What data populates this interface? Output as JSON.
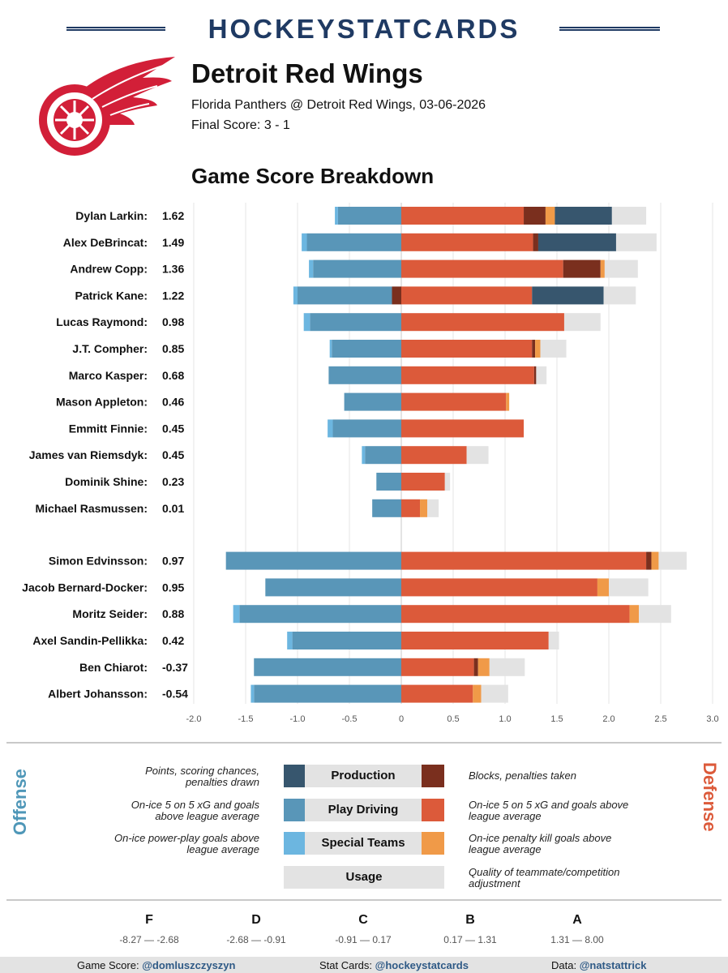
{
  "brand": "HOCKEYSTATCARDS",
  "team": "Detroit Red Wings",
  "matchup": "Florida Panthers @ Detroit Red Wings, 03-06-2026",
  "final_score": "Final Score: 3 - 1",
  "section_title": "Game Score Breakdown",
  "colors": {
    "production_off": "#37566e",
    "play_driving_off": "#5996b8",
    "special_teams_off": "#6cb6e0",
    "production_def": "#7a2f1e",
    "play_driving_def": "#dc5a3a",
    "special_teams_def": "#f09a48",
    "usage": "#e3e3e3",
    "brand": "#1f3a63",
    "logo_red": "#d21f38"
  },
  "chart_data": {
    "type": "bar",
    "orientation": "horizontal",
    "stacked": true,
    "xlim": [
      -2.0,
      3.0
    ],
    "xticks": [
      "-2.0",
      "-1.5",
      "-1.0",
      "-0.5",
      "0",
      "0.5",
      "1.0",
      "1.5",
      "2.0",
      "2.5",
      "3.0"
    ],
    "grid": true,
    "groups": [
      {
        "players": [
          {
            "name": "Dylan Larkin:",
            "score": "1.62",
            "off_special": -0.03,
            "off_play": -0.61,
            "off_prod": 0,
            "def_play": 1.18,
            "def_prod": 0.21,
            "def_special": 0.09,
            "def_prod2": 0.55,
            "usage": 0.33
          },
          {
            "name": "Alex DeBrincat:",
            "score": "1.49",
            "off_special": -0.05,
            "off_play": -0.91,
            "off_prod": 0,
            "def_play": 1.27,
            "def_prod": 0.05,
            "def_special": 0,
            "def_prod2": 0.75,
            "usage": 0.39
          },
          {
            "name": "Andrew Copp:",
            "score": "1.36",
            "off_special": -0.04,
            "off_play": -0.85,
            "off_prod": 0,
            "def_play": 1.56,
            "def_prod": 0.36,
            "def_special": 0.04,
            "def_prod2": 0,
            "usage": 0.32
          },
          {
            "name": "Patrick Kane:",
            "score": "1.22",
            "off_special": -0.04,
            "off_play": -0.91,
            "off_prod": -0.09,
            "def_play": 1.26,
            "def_prod": 0,
            "def_special": 0,
            "def_prod2": 0.69,
            "usage": 0.31
          },
          {
            "name": "Lucas Raymond:",
            "score": "0.98",
            "off_special": -0.06,
            "off_play": -0.88,
            "off_prod": 0,
            "def_play": 1.57,
            "def_prod": 0,
            "def_special": 0,
            "def_prod2": 0,
            "usage": 0.35
          },
          {
            "name": "J.T. Compher:",
            "score": "0.85",
            "off_special": -0.02,
            "off_play": -0.67,
            "off_prod": 0,
            "def_play": 1.26,
            "def_prod": 0.03,
            "def_special": 0.05,
            "def_prod2": 0,
            "usage": 0.25
          },
          {
            "name": "Marco Kasper:",
            "score": "0.68",
            "off_special": 0,
            "off_play": -0.7,
            "off_prod": 0,
            "def_play": 1.28,
            "def_prod": 0.02,
            "def_special": 0,
            "def_prod2": 0,
            "usage": 0.1
          },
          {
            "name": "Mason Appleton:",
            "score": "0.46",
            "off_special": 0,
            "off_play": -0.55,
            "off_prod": 0,
            "def_play": 1.01,
            "def_prod": 0,
            "def_special": 0.03,
            "def_prod2": 0,
            "usage": 0
          },
          {
            "name": "Emmitt Finnie:",
            "score": "0.45",
            "off_special": -0.05,
            "off_play": -0.66,
            "off_prod": 0,
            "def_play": 1.18,
            "def_prod": 0,
            "def_special": 0,
            "def_prod2": 0,
            "usage": 0
          },
          {
            "name": "James van Riemsdyk:",
            "score": "0.45",
            "off_special": -0.03,
            "off_play": -0.35,
            "off_prod": 0,
            "def_play": 0.63,
            "def_prod": 0,
            "def_special": 0,
            "def_prod2": 0,
            "usage": 0.21
          },
          {
            "name": "Dominik Shine:",
            "score": "0.23",
            "off_special": 0,
            "off_play": -0.24,
            "off_prod": 0,
            "def_play": 0.42,
            "def_prod": 0,
            "def_special": 0,
            "def_prod2": 0,
            "usage": 0.05
          },
          {
            "name": "Michael Rasmussen:",
            "score": "0.01",
            "off_special": 0,
            "off_play": -0.28,
            "off_prod": 0,
            "def_play": 0.18,
            "def_prod": 0,
            "def_special": 0.07,
            "def_prod2": 0,
            "usage": 0.11
          }
        ]
      },
      {
        "players": [
          {
            "name": "Simon Edvinsson:",
            "score": "0.97",
            "off_special": 0,
            "off_play": -1.69,
            "off_prod": 0,
            "def_play": 2.36,
            "def_prod": 0.05,
            "def_special": 0.07,
            "def_prod2": 0,
            "usage": 0.27
          },
          {
            "name": "Jacob Bernard-Docker:",
            "score": "0.95",
            "off_special": 0,
            "off_play": -1.31,
            "off_prod": 0,
            "def_play": 1.89,
            "def_prod": 0,
            "def_special": 0.11,
            "def_prod2": 0,
            "usage": 0.38
          },
          {
            "name": "Moritz Seider:",
            "score": "0.88",
            "off_special": -0.06,
            "off_play": -1.56,
            "off_prod": 0,
            "def_play": 2.2,
            "def_prod": 0,
            "def_special": 0.09,
            "def_prod2": 0,
            "usage": 0.31
          },
          {
            "name": "Axel Sandin-Pellikka:",
            "score": "0.42",
            "off_special": -0.05,
            "off_play": -1.05,
            "off_prod": 0,
            "def_play": 1.42,
            "def_prod": 0,
            "def_special": 0,
            "def_prod2": 0,
            "usage": 0.1
          },
          {
            "name": "Ben Chiarot:",
            "score": "-0.37",
            "off_special": 0,
            "off_play": -1.42,
            "off_prod": 0,
            "def_play": 0.7,
            "def_prod": 0.04,
            "def_special": 0.11,
            "def_prod2": 0,
            "usage": 0.34
          },
          {
            "name": "Albert Johansson:",
            "score": "-0.54",
            "off_special": -0.03,
            "off_play": -1.42,
            "off_prod": 0,
            "def_play": 0.69,
            "def_prod": 0,
            "def_special": 0.08,
            "def_prod2": 0,
            "usage": 0.26
          }
        ]
      }
    ]
  },
  "legend": {
    "offense_label": "Offense",
    "defense_label": "Defense",
    "rows": [
      {
        "label": "Production",
        "left_text": "Points, scoring chances, penalties drawn",
        "right_text": "Blocks, penalties taken"
      },
      {
        "label": "Play Driving",
        "left_text": "On-ice 5 on 5 xG and goals above league average",
        "right_text": "On-ice 5 on 5 xG and goals above league average"
      },
      {
        "label": "Special Teams",
        "left_text": "On-ice power-play goals above league average",
        "right_text": "On-ice penalty kill goals above league average"
      }
    ],
    "usage_label": "Usage",
    "usage_text": "Quality of teammate/competition adjustment"
  },
  "grades": [
    {
      "letter": "F",
      "range": "-8.27 — -2.68"
    },
    {
      "letter": "D",
      "range": "-2.68 — -0.91"
    },
    {
      "letter": "C",
      "range": "-0.91 — 0.17"
    },
    {
      "letter": "B",
      "range": "0.17 — 1.31"
    },
    {
      "letter": "A",
      "range": "1.31 — 8.00"
    }
  ],
  "footer": {
    "game_score_label": "Game Score:",
    "game_score_handle": "@domluszczyszyn",
    "stat_cards_label": "Stat Cards:",
    "stat_cards_handle": "@hockeystatcards",
    "data_label": "Data:",
    "data_handle": "@natstattrick"
  }
}
